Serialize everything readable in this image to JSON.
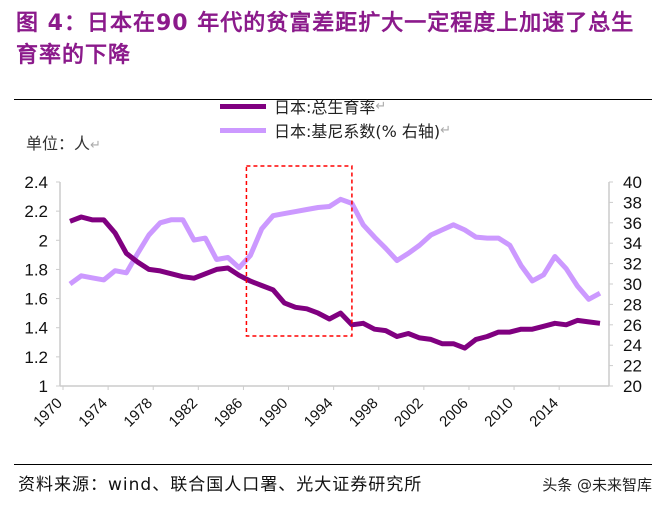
{
  "title": "图 4：日本在90 年代的贫富差距扩大一定程度上加速了总生育率的下降",
  "unit_label": "单位：人",
  "source": "资料来源：wind、联合国人口署、光大证券研究所",
  "watermark": "头条 @未来智库",
  "chart_data": {
    "type": "line",
    "x": [
      1970,
      1971,
      1972,
      1973,
      1974,
      1975,
      1976,
      1977,
      1978,
      1979,
      1980,
      1981,
      1982,
      1983,
      1984,
      1985,
      1986,
      1987,
      1988,
      1989,
      1990,
      1991,
      1992,
      1993,
      1994,
      1995,
      1996,
      1997,
      1998,
      1999,
      2000,
      2001,
      2002,
      2003,
      2004,
      2005,
      2006,
      2007,
      2008,
      2009,
      2010,
      2011,
      2012,
      2013,
      2014,
      2015,
      2016,
      2017
    ],
    "xticks": [
      "1970",
      "1974",
      "1978",
      "1982",
      "1986",
      "1990",
      "1994",
      "1998",
      "2002",
      "2006",
      "2010",
      "2014"
    ],
    "ylim_left": [
      1,
      2.4
    ],
    "yticks_left": [
      "1",
      "1.2",
      "1.4",
      "1.6",
      "1.8",
      "2",
      "2.2",
      "2.4"
    ],
    "ylim_right": [
      20,
      40
    ],
    "yticks_right": [
      "20",
      "22",
      "24",
      "26",
      "28",
      "30",
      "32",
      "34",
      "36",
      "38",
      "40"
    ],
    "series": [
      {
        "name": "日本:总生育率",
        "axis": "left",
        "color": "#800080",
        "values": [
          2.13,
          2.16,
          2.14,
          2.14,
          2.05,
          1.91,
          1.85,
          1.8,
          1.79,
          1.77,
          1.75,
          1.74,
          1.77,
          1.8,
          1.81,
          1.76,
          1.72,
          1.69,
          1.66,
          1.57,
          1.54,
          1.53,
          1.5,
          1.46,
          1.5,
          1.42,
          1.43,
          1.39,
          1.38,
          1.34,
          1.36,
          1.33,
          1.32,
          1.29,
          1.29,
          1.26,
          1.32,
          1.34,
          1.37,
          1.37,
          1.39,
          1.39,
          1.41,
          1.43,
          1.42,
          1.45,
          1.44,
          1.43
        ]
      },
      {
        "name": "日本:基尼系数(% 右轴)",
        "axis": "right",
        "color": "#cc99ff",
        "values": [
          30,
          30.8,
          30.6,
          30.4,
          31.3,
          31.1,
          33,
          34.8,
          36,
          36.3,
          36.3,
          34.3,
          34.5,
          32.4,
          32.6,
          31.6,
          32.8,
          35.4,
          36.7,
          36.9,
          37.1,
          37.3,
          37.5,
          37.6,
          38.3,
          37.9,
          35.8,
          34.6,
          33.5,
          32.3,
          33,
          33.8,
          34.8,
          35.3,
          35.8,
          35.3,
          34.6,
          34.5,
          34.5,
          33.8,
          31.8,
          30.3,
          30.9,
          32.7,
          31.5,
          29.8,
          28.5,
          29.1
        ]
      }
    ],
    "highlight_range": [
      1986,
      1995
    ],
    "highlight_color": "#ff0000",
    "grid": false,
    "legend": "top-center"
  }
}
